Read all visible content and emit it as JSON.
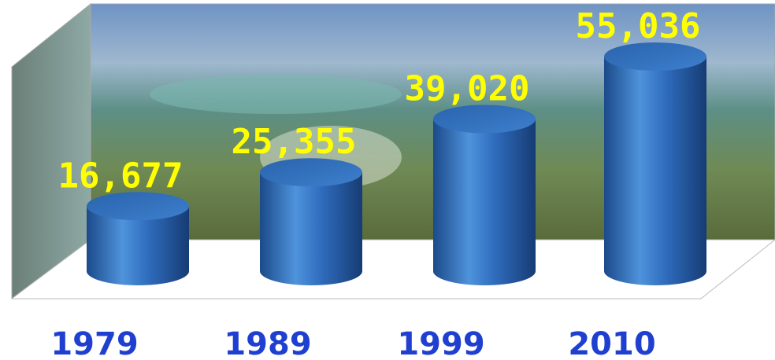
{
  "chart_data": {
    "type": "bar",
    "categories": [
      "1979",
      "1989",
      "1999",
      "2010"
    ],
    "values": [
      16677,
      25355,
      39020,
      55036
    ],
    "value_labels": [
      "16,677",
      "25,355",
      "39,020",
      "55,036"
    ],
    "color": "#2a66b5"
  }
}
